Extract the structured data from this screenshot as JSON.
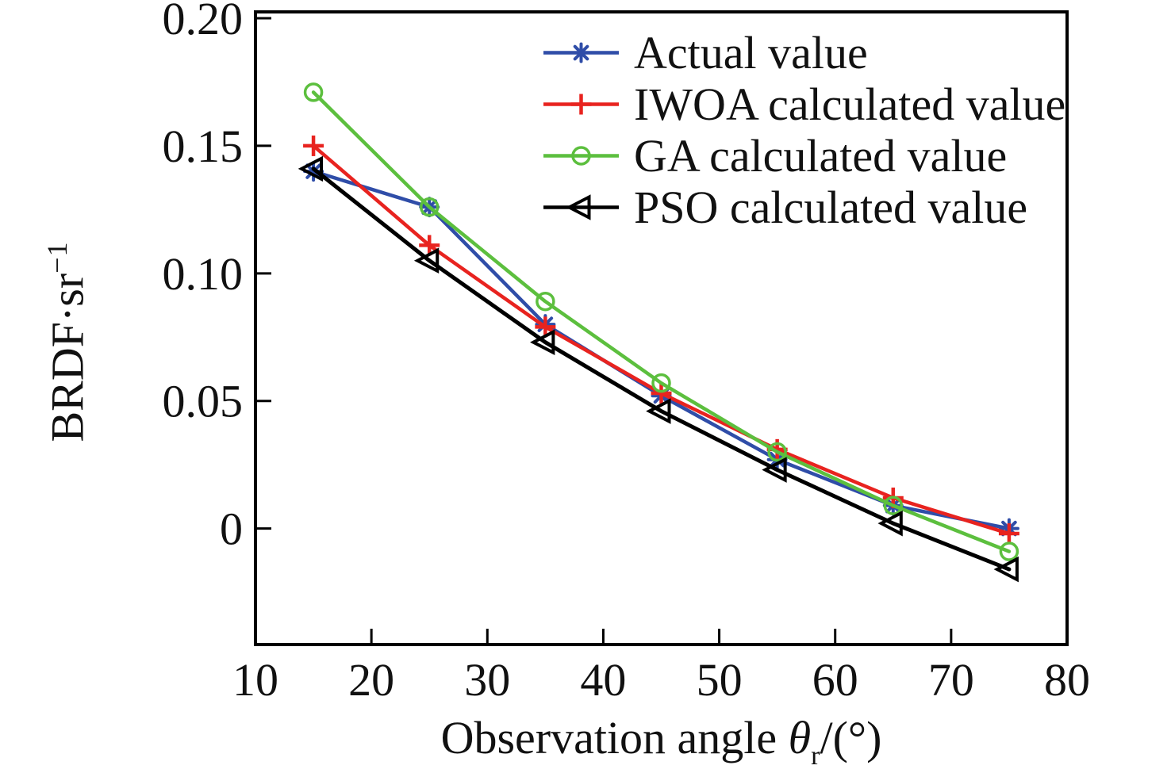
{
  "figure": {
    "background": "#ffffff",
    "text_color": "#111111"
  },
  "chart_data": {
    "type": "line",
    "title": "",
    "xlabel": "Observation angle θr/(°)",
    "xlabel_parts": {
      "prefix": "Observation angle ",
      "symbol": "θ",
      "subscript": "r",
      "suffix": "/(°)"
    },
    "ylabel": "BRDF·sr−1",
    "ylabel_parts": {
      "main": "BRDF·sr",
      "superscript": "−1"
    },
    "x": [
      15,
      25,
      35,
      45,
      55,
      65,
      75
    ],
    "series": [
      {
        "name": "Actual value",
        "color": "#2f4da8",
        "marker": "asterisk",
        "values": [
          0.14,
          0.126,
          0.08,
          0.052,
          0.027,
          0.009,
          0.0
        ]
      },
      {
        "name": "IWOA calculated value",
        "color": "#e8231f",
        "marker": "plus",
        "values": [
          0.15,
          0.111,
          0.079,
          0.053,
          0.031,
          0.012,
          -0.002
        ]
      },
      {
        "name": "GA calculated value",
        "color": "#5cbf3e",
        "marker": "circle-open",
        "values": [
          0.171,
          0.126,
          0.089,
          0.057,
          0.03,
          0.009,
          -0.009
        ]
      },
      {
        "name": "PSO calculated value",
        "color": "#000000",
        "marker": "triangle-left-open",
        "values": [
          0.141,
          0.105,
          0.073,
          0.046,
          0.023,
          0.002,
          -0.016
        ]
      }
    ],
    "xlim": [
      10,
      80
    ],
    "ylim": [
      -0.0455,
      0.2025
    ],
    "xticks": [
      10,
      20,
      30,
      40,
      50,
      60,
      70,
      80
    ],
    "yticks": [
      0,
      0.05,
      0.1,
      0.15,
      0.2
    ],
    "ytick_labels": [
      "0",
      "0.05",
      "0.10",
      "0.15",
      "0.20"
    ],
    "legend_position": "upper-right-inside",
    "grid": false,
    "frame": true
  }
}
